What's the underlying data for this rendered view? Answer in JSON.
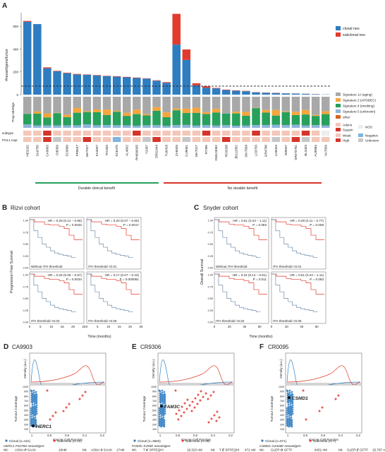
{
  "panelA": {
    "label": "A",
    "ylabel": "#neoantigens/tumor",
    "yticks": [
      0,
      200,
      400,
      600
    ],
    "ymax": 720,
    "threshold": 75,
    "legend": {
      "clonal": "clonal neo",
      "subclonal": "subclonal neo"
    },
    "colors": {
      "clonal": "#2E7DC1",
      "subclonal": "#E23B2E",
      "sig1a": "#A8A8A8",
      "sig2": "#F5A53C",
      "sig4": "#27A05C",
      "sig5": "#8FB3DA",
      "other": "#D8611B",
      "adeno": "#F4C7B8",
      "squam": "#D6342A",
      "nos": "#EDEDED",
      "weak": "#F4C7B8",
      "high": "#D6342A",
      "negative": "#7FB5DF",
      "unknown": "#C7C7C7"
    },
    "samples": [
      "HE3202",
      "SA9755",
      "CA9903",
      "DI6359",
      "SC0899",
      "FR9547",
      "MA7027",
      "KA3947",
      "RI1933",
      "SC6470",
      "AL4602",
      "RH090935",
      "Y2087",
      "SR01944",
      "TU0428",
      "ZA6505",
      "CU9061",
      "MA7027",
      "R7495",
      "DM123062",
      "RO3338",
      "JB112852",
      "WA7899",
      "LO3793",
      "GR4788",
      "LO5004",
      "NI9507",
      "SR070761",
      "BL3403",
      "AU5884",
      "VA7659"
    ],
    "clonal": [
      640,
      620,
      232,
      205,
      188,
      178,
      174,
      168,
      163,
      158,
      152,
      146,
      140,
      122,
      104,
      440,
      305,
      82,
      60,
      55,
      40,
      34,
      30,
      20,
      16,
      14,
      11,
      9,
      7,
      4,
      2
    ],
    "subclonal": [
      8,
      0,
      8,
      4,
      5,
      4,
      3,
      4,
      3,
      4,
      4,
      4,
      3,
      4,
      6,
      270,
      92,
      18,
      14,
      4,
      4,
      3,
      3,
      2,
      2,
      2,
      1,
      1,
      1,
      1,
      0
    ],
    "sig_legend": [
      "Signature 1A (aging)",
      "Signature 2 (APOBEC)",
      "Signature 4 (smoking)",
      "Signature 5 (unknown)",
      "other"
    ],
    "sig_ylabel": "Prop MutSigs",
    "subtype_label": "subtype",
    "pdl1_label": "POL1 expr",
    "subtype_legend": [
      "Adeno",
      "Squam",
      "NOS"
    ],
    "pdl1_legend": [
      "Weak",
      "High",
      "Negative",
      "Unknown"
    ],
    "groups": [
      "Durable clinical benefit",
      "No durable benefit"
    ]
  },
  "panelB": {
    "label": "B",
    "title": "Rizvi cohort",
    "ylabel": "Progression Free Survival",
    "xlabel": "Time (months)",
    "xticks": [
      "0",
      "5",
      "10",
      "15",
      "20",
      "25"
    ],
    "yticks": [
      "0.00",
      "0.25",
      "0.50",
      "0.75",
      "1.00"
    ],
    "plots": [
      {
        "hr": "HR = 0.29 (0.12 – 0.69)",
        "p": "P = 0.0032",
        "cap": "Without ITH threshold"
      },
      {
        "hr": "HR = 0.20 (0.07 – 0.60)",
        "p": "P = 0.0017",
        "cap": "ITH threshold <0.01"
      },
      {
        "hr": "HR = 0.25 (0.09 – 0.67)",
        "p": "P = 0.0034",
        "cap": "ITH threshold <0.02"
      },
      {
        "hr": "HR = 0.17 (0.07 – 0.44)",
        "p": "P = 0.000061",
        "cap": "ITH threshold <0.05"
      }
    ]
  },
  "panelC": {
    "label": "C",
    "title": "Snyder cohort",
    "ylabel": "Overall Survival",
    "xlabel": "Time (months)",
    "xticks": [
      "0",
      "20",
      "40",
      "60"
    ],
    "yticks": [
      "0.00",
      "0.25",
      "0.50",
      "0.75",
      "1.00"
    ],
    "plots": [
      {
        "hr": "HR = 0.51 (0.23 – 1.11)",
        "p": "P = 0.083",
        "cap": "Without ITH threshold"
      },
      {
        "hr": "HR = 0.29 (0.11 – 0.77)",
        "p": "P = 0.008",
        "cap": "ITH threshold <0.01"
      },
      {
        "hr": "HR = 0.34 (0.14 – 0.81)",
        "p": "P = 0.011",
        "cap": "ITH threshold <0.02"
      },
      {
        "hr": "HR = 0.51 (0.23 – 1.11)",
        "p": "P = 0.083",
        "cap": "ITH threshold <0.05"
      }
    ]
  },
  "panelD": {
    "label": "D",
    "title": "CA9903",
    "gene": "HERC1",
    "yticks": [
      "1000",
      "900",
      "800",
      "700",
      "600",
      "500",
      "400",
      "300",
      "200",
      "100"
    ],
    "xticks": [
      "1",
      "0.8",
      "0.6",
      "0.4",
      "0.2"
    ],
    "legend_clonal": "Clonal (n=421)",
    "legend_subclonal": "Subclonal (n=12)",
    "neo_title": "HERC1 P3278S neoantigen:",
    "wt_label": "Wt:",
    "mt_label": "Mt:",
    "wt_pre": "ASNA ",
    "wt_aa": "P",
    "wt_post": " SAAK",
    "wt_val": "18nM",
    "mt_pre": "ASNA ",
    "mt_aa": "S",
    "mt_post": " SAAK",
    "mt_val": "17nM"
  },
  "panelE": {
    "label": "E",
    "title": "CR9306",
    "gene": "FAM3C",
    "yticks": [
      "1000",
      "900",
      "800",
      "700",
      "600",
      "500",
      "400",
      "300",
      "200",
      "100"
    ],
    "xticks": [
      "1",
      "0.8",
      "0.6",
      "0.4",
      "0.2"
    ],
    "legend_clonal": "Clonal (n=3683)",
    "legend_subclonal": "Subclonal (n=35)",
    "neo_title": "FAM3C K193E neoantigen:",
    "wt_label": "Wt:",
    "mt_label": "Mt:",
    "wt_pre": "T ",
    "wt_aa": "K",
    "wt_post": " SPFEQHI",
    "wt_val": "18,323 nM",
    "mt_pre": "T ",
    "mt_aa": "E",
    "mt_post": " SPFEQHI",
    "mt_val": "472 nM"
  },
  "panelF": {
    "label": "F",
    "title": "CR0095",
    "gene": "CSMD1",
    "yticks": [
      "1000",
      "900",
      "800",
      "700",
      "600",
      "500",
      "400",
      "300",
      "200",
      "100"
    ],
    "xticks": [
      "1",
      "0.8",
      "0.6",
      "0.4",
      "0.2"
    ],
    "legend_clonal": "Clonal (n=671)",
    "legend_subclonal": "Subclonal (n=7)",
    "neo_title": "CSMD1 G3446E neoantigen:",
    "wt_label": "Wt:",
    "mt_label": "Mt:",
    "wt_pre": "GLER ",
    "wt_aa": "G",
    "wt_post": " GFTF",
    "wt_val": "8451 nM",
    "mt_pre": "GLER ",
    "mt_aa": "E",
    "mt_post": " GFTF",
    "mt_val": "15,787 nM"
  },
  "common": {
    "density_ylabel": "Density (a.u.)",
    "coverage_ylabel": "Tumour Coverage",
    "ccf_xlabel": "Cancer Cell Fraction"
  }
}
